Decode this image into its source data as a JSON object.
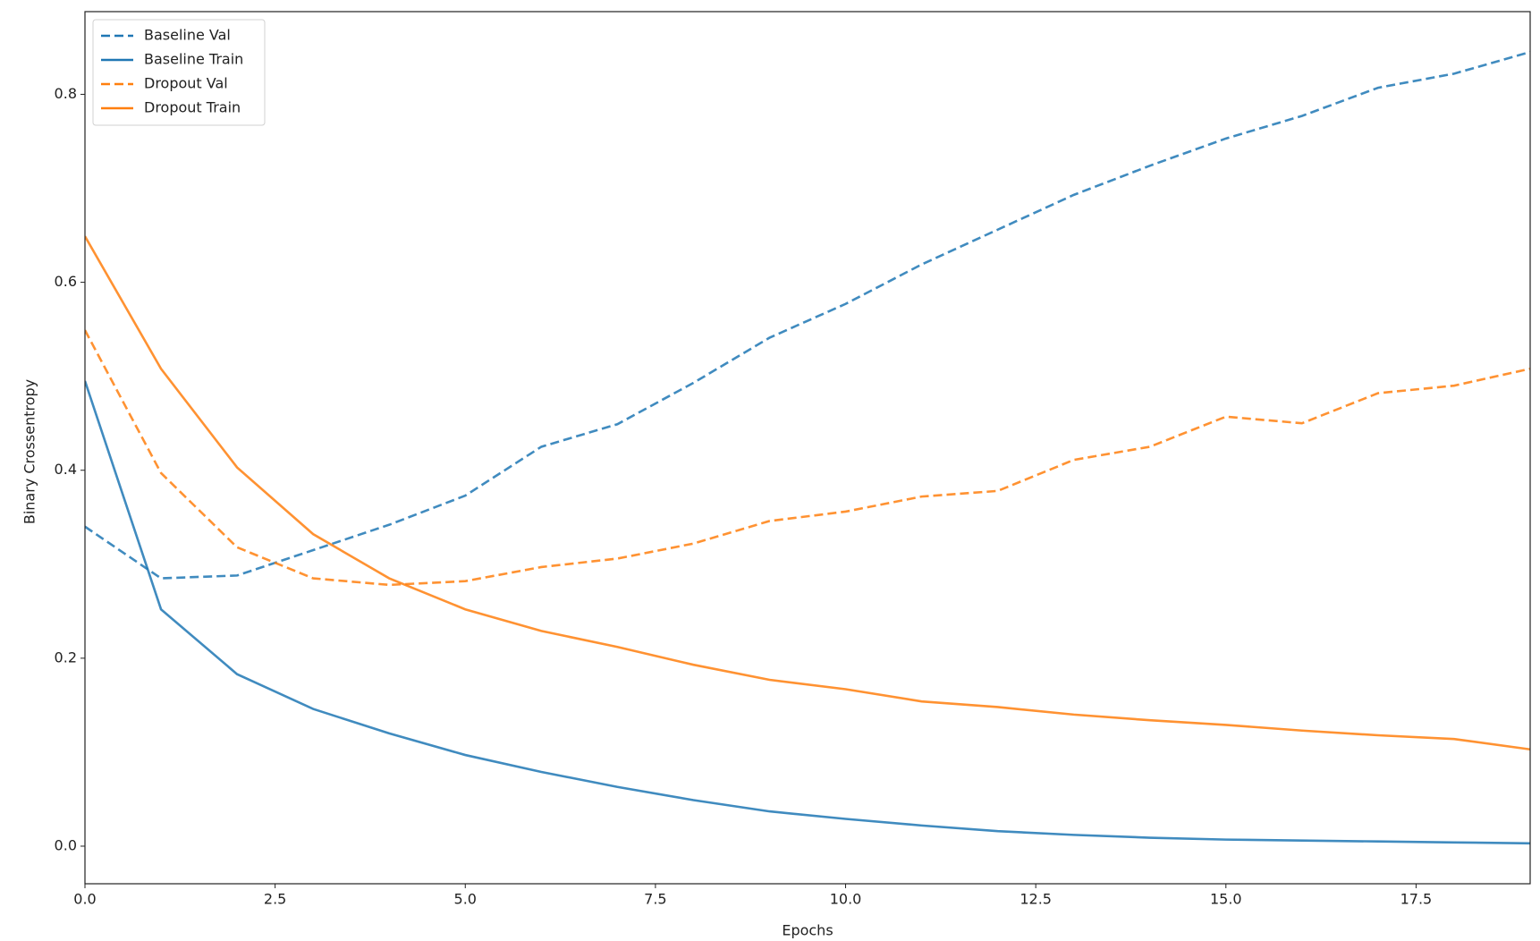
{
  "chart_data": {
    "type": "line",
    "x_label": "Epochs",
    "y_label": "Binary Crossentropy",
    "x": [
      0,
      1,
      2,
      3,
      4,
      5,
      6,
      7,
      8,
      9,
      10,
      11,
      12,
      13,
      14,
      15,
      16,
      17,
      18,
      19
    ],
    "series": [
      {
        "name": "Baseline Val",
        "color": "#1f77b4",
        "dash": true,
        "values": [
          0.34,
          0.285,
          0.288,
          0.315,
          0.342,
          0.373,
          0.425,
          0.449,
          0.493,
          0.541,
          0.577,
          0.619,
          0.656,
          0.693,
          0.724,
          0.753,
          0.777,
          0.807,
          0.822,
          0.845
        ]
      },
      {
        "name": "Baseline Train",
        "color": "#1f77b4",
        "dash": false,
        "values": [
          0.495,
          0.252,
          0.183,
          0.146,
          0.12,
          0.097,
          0.079,
          0.063,
          0.049,
          0.037,
          0.029,
          0.022,
          0.016,
          0.012,
          0.009,
          0.007,
          0.006,
          0.005,
          0.004,
          0.003
        ]
      },
      {
        "name": "Dropout Val",
        "color": "#ff7f0e",
        "dash": true,
        "values": [
          0.549,
          0.397,
          0.318,
          0.285,
          0.278,
          0.282,
          0.297,
          0.306,
          0.322,
          0.346,
          0.356,
          0.372,
          0.378,
          0.411,
          0.425,
          0.457,
          0.45,
          0.482,
          0.49,
          0.508
        ]
      },
      {
        "name": "Dropout Train",
        "color": "#ff7f0e",
        "dash": false,
        "values": [
          0.649,
          0.508,
          0.403,
          0.332,
          0.285,
          0.252,
          0.229,
          0.212,
          0.193,
          0.177,
          0.167,
          0.154,
          0.148,
          0.14,
          0.134,
          0.129,
          0.123,
          0.118,
          0.114,
          0.103
        ]
      }
    ],
    "xlim": [
      0,
      19
    ],
    "ylim": [
      -0.04,
      0.888
    ],
    "xticks": [
      {
        "value": 0,
        "label": "0.0"
      },
      2.5,
      {
        "value": 5,
        "label": "5.0"
      },
      7.5,
      {
        "value": 10,
        "label": "10.0"
      },
      12.5,
      {
        "value": 15,
        "label": "15.0"
      },
      17.5
    ],
    "yticks": [
      {
        "value": 0,
        "label": "0.0"
      },
      0.2,
      0.4,
      0.6,
      0.8
    ],
    "legend": "upper left"
  }
}
